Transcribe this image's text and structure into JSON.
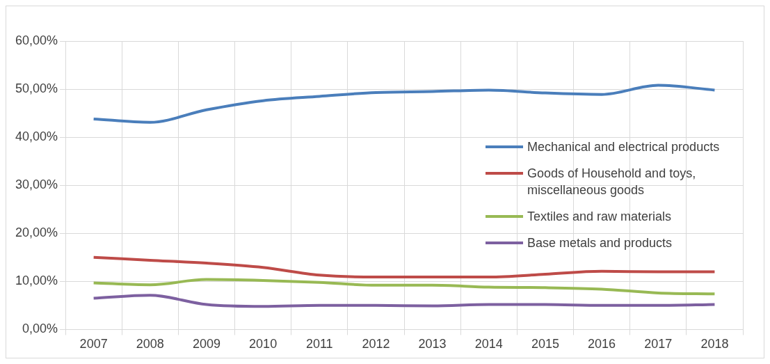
{
  "chart_data": {
    "type": "line",
    "categories": [
      "2007",
      "2008",
      "2009",
      "2010",
      "2011",
      "2012",
      "2013",
      "2014",
      "2015",
      "2016",
      "2017",
      "2018"
    ],
    "series": [
      {
        "name": "Mechanical and electrical products",
        "color": "#4a7ebb",
        "values": [
          43.8,
          43.1,
          45.7,
          47.6,
          48.5,
          49.3,
          49.5,
          49.8,
          49.2,
          48.9,
          50.8,
          49.8
        ]
      },
      {
        "name": "Goods of Household and toys, miscellaneous goods",
        "color": "#be4b48",
        "values": [
          15.0,
          14.4,
          13.8,
          12.9,
          11.3,
          10.9,
          10.9,
          10.9,
          11.5,
          12.1,
          12.0,
          12.0
        ]
      },
      {
        "name": "Textiles and raw materials",
        "color": "#98b954",
        "values": [
          9.7,
          9.3,
          10.4,
          10.2,
          9.8,
          9.2,
          9.2,
          8.8,
          8.7,
          8.4,
          7.6,
          7.4
        ]
      },
      {
        "name": "Base metals and products",
        "color": "#7d60a0",
        "values": [
          6.5,
          7.1,
          5.2,
          4.8,
          5.0,
          5.0,
          4.9,
          5.2,
          5.2,
          5.0,
          5.0,
          5.2
        ]
      }
    ],
    "ylim": [
      0,
      60
    ],
    "yticks": [
      {
        "value": 0,
        "label": "0,00%"
      },
      {
        "value": 10,
        "label": "10,00%"
      },
      {
        "value": 20,
        "label": "20,00%"
      },
      {
        "value": 30,
        "label": "30,00%"
      },
      {
        "value": 40,
        "label": "40,00%"
      },
      {
        "value": 50,
        "label": "50,00%"
      },
      {
        "value": 60,
        "label": "60,00%"
      }
    ],
    "grid": true,
    "legend": "right",
    "marker": "none",
    "line_style": "solid"
  }
}
